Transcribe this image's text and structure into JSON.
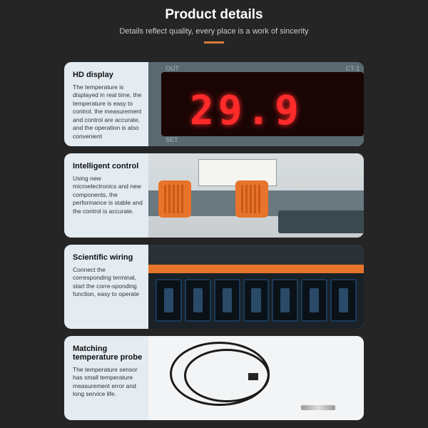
{
  "header": {
    "title": "Product details",
    "subtitle": "Details reflect quality, every place is a work of sincerity"
  },
  "accent_color": "#d97a3a",
  "cards": [
    {
      "title": "HD display",
      "desc": "The temperature is displayed in real time, the temperature is easy to control, the measurement and control are accurate, and the operation is also convenient",
      "led_value": "29.9",
      "out_label": "OUT",
      "set_label": "SET",
      "model_label": "CT-1"
    },
    {
      "title": "Intelligent control",
      "desc": "Using new microelectronics and new components, the performance is stable and the control is accurate."
    },
    {
      "title": "Scientific wiring",
      "desc": "Connect the corresponding terminal, start the corre-sponding function, easy to operate"
    },
    {
      "title": "Matching temperature probe",
      "desc": "The temperature sensor has small temperature measurement error and long service life."
    }
  ]
}
